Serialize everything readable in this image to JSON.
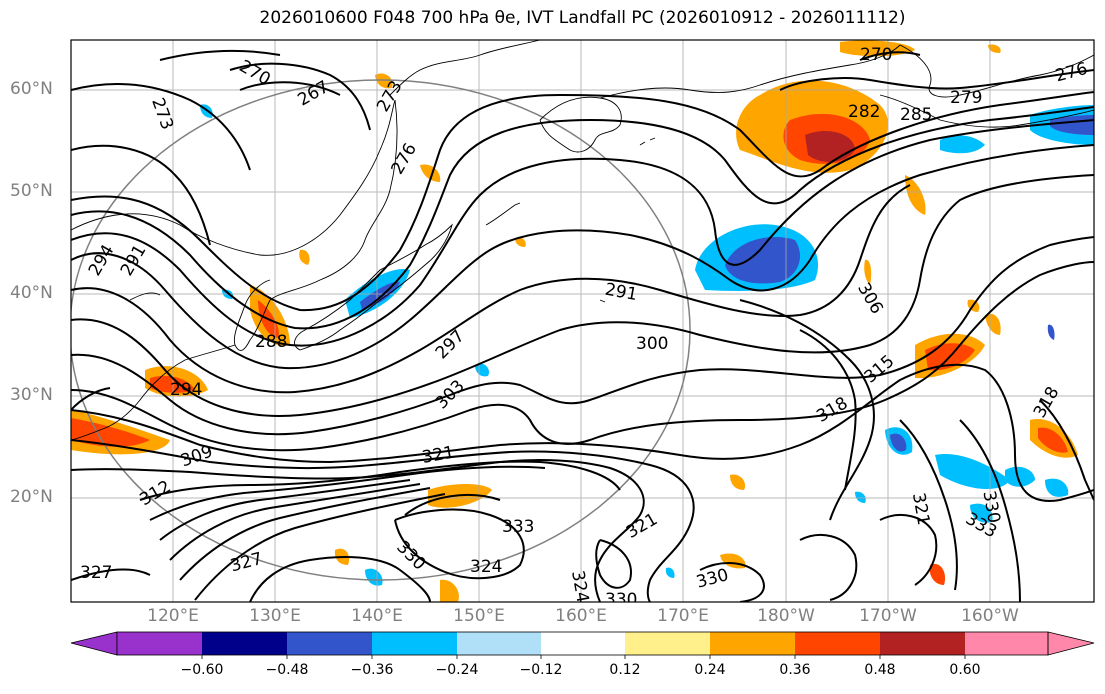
{
  "title": "2026010600 F048 700 hPa θe, IVT Landfall PC (2026010912 - 2026011112)",
  "lat_labels": [
    "60°N",
    "50°N",
    "40°N",
    "30°N",
    "20°N"
  ],
  "lon_labels": [
    "120°E",
    "130°E",
    "140°E",
    "150°E",
    "160°E",
    "170°E",
    "180°W",
    "170°W",
    "160°W"
  ],
  "contour_labels": [
    "270",
    "267",
    "273",
    "276",
    "273",
    "270",
    "276",
    "279",
    "282",
    "285",
    "294",
    "291",
    "288",
    "294",
    "291",
    "297",
    "300",
    "303",
    "306",
    "309",
    "312",
    "315",
    "318",
    "321",
    "324",
    "327",
    "330",
    "333",
    "318",
    "321",
    "330",
    "333",
    "321",
    "330",
    "327",
    "324",
    "330"
  ],
  "colorbar": {
    "ticks": [
      "−0.60",
      "−0.48",
      "−0.36",
      "−0.24",
      "−0.12",
      "0.12",
      "0.24",
      "0.36",
      "0.48",
      "0.60"
    ],
    "colors": [
      "#9932cc",
      "#00008b",
      "#3355cc",
      "#00bfff",
      "#b0e0f8",
      "#ffffff",
      "#fff08c",
      "#ffa500",
      "#ff4500",
      "#b22222",
      "#ff88aa"
    ]
  }
}
